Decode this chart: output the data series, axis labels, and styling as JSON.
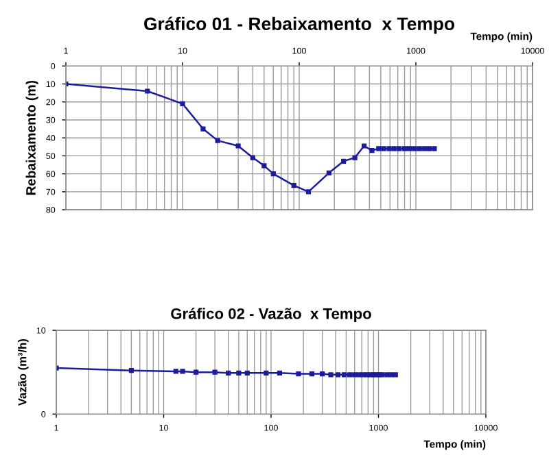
{
  "chart_data": [
    {
      "type": "line",
      "title": "Gráfico 01 - Rebaixamento  x Tempo",
      "xlabel": "Tempo (min)",
      "ylabel": "Rebaixamento (m)",
      "log": "x",
      "xlim": [
        1,
        10000
      ],
      "xticks": [
        1,
        10,
        100,
        1000,
        10000
      ],
      "ylim": [
        80,
        0
      ],
      "yticks": [
        0,
        10,
        20,
        30,
        40,
        50,
        60,
        70,
        80
      ],
      "grid": true,
      "marker": "square",
      "line_style": "solid",
      "series": [
        {
          "color": "#1c1c9c",
          "x": [
            1,
            5,
            10,
            15,
            20,
            30,
            40,
            50,
            60,
            90,
            120,
            180,
            240,
            300,
            360,
            420,
            480,
            530,
            590,
            650,
            720,
            800,
            880,
            970,
            1070,
            1180,
            1300,
            1440
          ],
          "values": [
            10,
            14,
            21,
            35,
            41.5,
            44.5,
            51,
            55.5,
            60,
            66.5,
            70,
            59.5,
            53,
            51,
            44.5,
            47,
            46,
            46,
            46,
            46,
            46,
            46,
            46,
            46,
            46,
            46,
            46,
            46
          ]
        }
      ]
    },
    {
      "type": "line",
      "title": "Gráfico 02 - Vazão  x Tempo",
      "xlabel": "Tempo (min)",
      "ylabel": "Vazão (m³/h)",
      "log": "x",
      "xlim": [
        1,
        10000
      ],
      "xticks": [
        1,
        10,
        100,
        1000,
        10000
      ],
      "ylim": [
        0,
        10
      ],
      "yticks": [
        0,
        10
      ],
      "grid": "x",
      "marker": "square",
      "line_style": "solid",
      "series": [
        {
          "color": "#1c1c9c",
          "x": [
            1,
            5,
            13,
            15,
            20,
            30,
            40,
            50,
            60,
            90,
            120,
            180,
            240,
            300,
            360,
            420,
            480,
            540,
            600,
            660,
            720,
            780,
            840,
            900,
            960,
            1020,
            1080,
            1200,
            1320,
            1440
          ],
          "values": [
            5.5,
            5.2,
            5.1,
            5.1,
            5.0,
            5.0,
            4.9,
            4.9,
            4.9,
            4.9,
            4.9,
            4.8,
            4.8,
            4.8,
            4.7,
            4.7,
            4.7,
            4.7,
            4.7,
            4.7,
            4.7,
            4.7,
            4.7,
            4.7,
            4.7,
            4.7,
            4.7,
            4.7,
            4.7,
            4.7
          ]
        }
      ]
    }
  ]
}
